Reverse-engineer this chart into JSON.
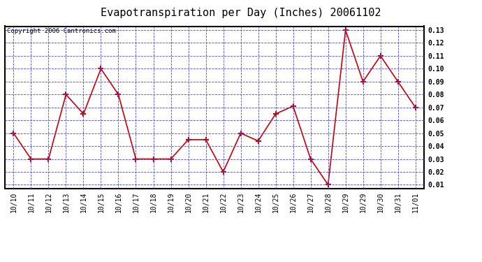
{
  "title": "Evapotranspiration per Day (Inches) 20061102",
  "copyright": "Copyright 2006 Cantronics.com",
  "x_ticks": [
    "10/10",
    "10/11",
    "10/12",
    "10/13",
    "10/14",
    "10/15",
    "10/16",
    "10/17",
    "10/18",
    "10/19",
    "10/20",
    "10/21",
    "10/22",
    "10/23",
    "10/24",
    "10/25",
    "10/26",
    "10/27",
    "10/28",
    "10/29",
    "10/29",
    "10/30",
    "10/31",
    "11/01"
  ],
  "values": [
    0.05,
    0.03,
    0.03,
    0.08,
    0.065,
    0.1,
    0.08,
    0.03,
    0.03,
    0.03,
    0.045,
    0.045,
    0.02,
    0.05,
    0.044,
    0.065,
    0.071,
    0.03,
    0.01,
    0.13,
    0.09,
    0.11,
    0.09,
    0.07
  ],
  "ylim": [
    0.01,
    0.13
  ],
  "yticks": [
    0.01,
    0.02,
    0.03,
    0.04,
    0.05,
    0.06,
    0.07,
    0.08,
    0.09,
    0.1,
    0.11,
    0.12,
    0.13
  ],
  "line_color": "#cc0000",
  "marker": "+",
  "marker_size": 6,
  "marker_color": "#cc0000",
  "grid_color": "#4444ff",
  "bg_color": "#ffffff",
  "plot_bg_color": "#ffffff",
  "title_fontsize": 11,
  "tick_fontsize": 7,
  "copyright_fontsize": 6.5
}
